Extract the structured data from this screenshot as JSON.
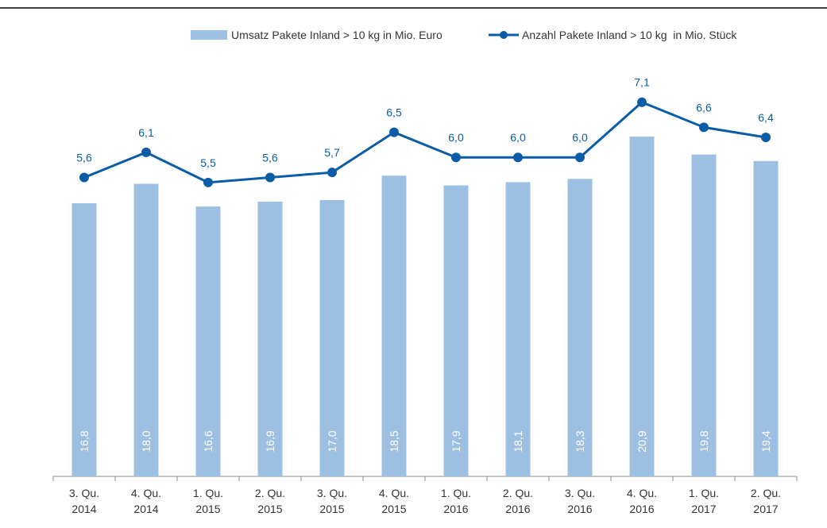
{
  "chart_data": {
    "type": "bar-line",
    "categories": [
      "3. Qu. 2014",
      "4. Qu. 2014",
      "1. Qu. 2015",
      "2. Qu. 2015",
      "3. Qu. 2015",
      "4. Qu. 2015",
      "1. Qu. 2016",
      "2. Qu. 2016",
      "3. Qu. 2016",
      "4. Qu. 2016",
      "1. Qu. 2017",
      "2. Qu. 2017"
    ],
    "series": [
      {
        "name": "Umsatz Pakete Inland > 10 kg in Mio. Euro",
        "type": "bar",
        "color": "#9dc0e2",
        "values": [
          16.8,
          18.0,
          16.6,
          16.9,
          17.0,
          18.5,
          17.9,
          18.1,
          18.3,
          20.9,
          19.8,
          19.4
        ],
        "value_labels": [
          "16,8",
          "18,0",
          "16,6",
          "16,9",
          "17,0",
          "18,5",
          "17,9",
          "18,1",
          "18,3",
          "20,9",
          "19,8",
          "19,4"
        ]
      },
      {
        "name": "Anzahl Pakete Inland > 10 kg  in Mio. Stück",
        "type": "line",
        "axis": "y2",
        "color": "#0a5ca6",
        "values": [
          5.6,
          6.1,
          5.5,
          5.6,
          5.7,
          6.5,
          6.0,
          6.0,
          6.0,
          7.1,
          6.6,
          6.4
        ],
        "value_labels": [
          "5,6",
          "6,1",
          "5,5",
          "5,6",
          "5,7",
          "6,5",
          "6,0",
          "6,0",
          "6,0",
          "7,1",
          "6,6",
          "6,4"
        ]
      }
    ],
    "ylim": [
      0,
      25.3
    ],
    "y2lim": [
      -0.36,
      7.84
    ]
  }
}
